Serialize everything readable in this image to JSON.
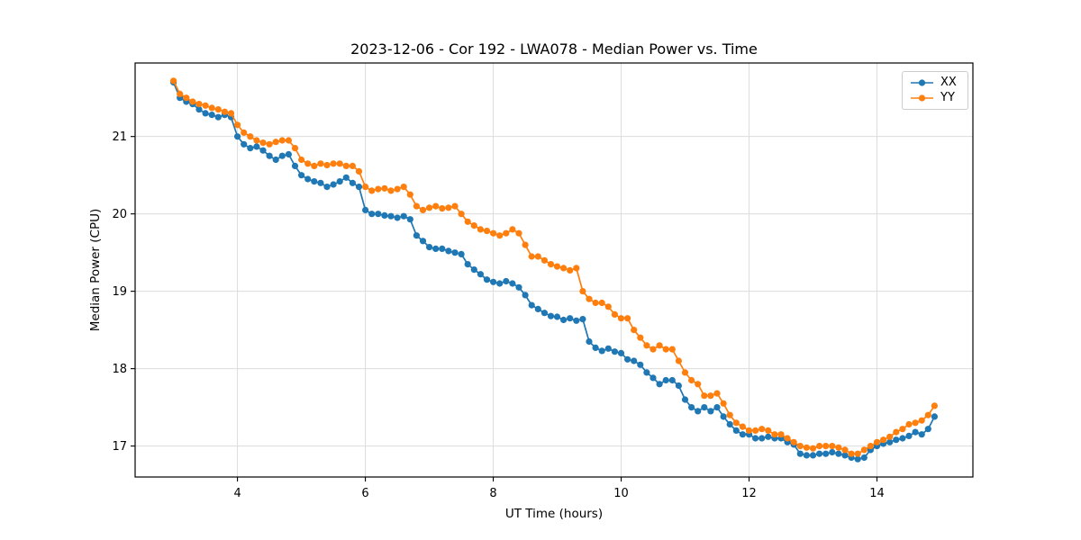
{
  "chart_data": {
    "type": "line",
    "title": "2023-12-06 - Cor 192 - LWA078 - Median Power vs. Time",
    "xlabel": "UT Time (hours)",
    "ylabel": "Median Power (CPU)",
    "xlim": [
      2.4,
      15.5
    ],
    "ylim": [
      16.6,
      21.95
    ],
    "xticks": [
      4,
      6,
      8,
      10,
      12,
      14
    ],
    "yticks": [
      17,
      18,
      19,
      20,
      21
    ],
    "grid": true,
    "legend_position": "upper right",
    "marker": "circle",
    "x": [
      3.0,
      3.1,
      3.2,
      3.3,
      3.4,
      3.5,
      3.6,
      3.7,
      3.8,
      3.9,
      4.0,
      4.1,
      4.2,
      4.3,
      4.4,
      4.5,
      4.6,
      4.7,
      4.8,
      4.9,
      5.0,
      5.1,
      5.2,
      5.3,
      5.4,
      5.5,
      5.6,
      5.7,
      5.8,
      5.9,
      6.0,
      6.1,
      6.2,
      6.3,
      6.4,
      6.5,
      6.6,
      6.7,
      6.8,
      6.9,
      7.0,
      7.1,
      7.2,
      7.3,
      7.4,
      7.5,
      7.6,
      7.7,
      7.8,
      7.9,
      8.0,
      8.1,
      8.2,
      8.3,
      8.4,
      8.5,
      8.6,
      8.7,
      8.8,
      8.9,
      9.0,
      9.1,
      9.2,
      9.3,
      9.4,
      9.5,
      9.6,
      9.7,
      9.8,
      9.9,
      10.0,
      10.1,
      10.2,
      10.3,
      10.4,
      10.5,
      10.6,
      10.7,
      10.8,
      10.9,
      11.0,
      11.1,
      11.2,
      11.3,
      11.4,
      11.5,
      11.6,
      11.7,
      11.8,
      11.9,
      12.0,
      12.1,
      12.2,
      12.3,
      12.4,
      12.5,
      12.6,
      12.7,
      12.8,
      12.9,
      13.0,
      13.1,
      13.2,
      13.3,
      13.4,
      13.5,
      13.6,
      13.7,
      13.8,
      13.9,
      14.0,
      14.1,
      14.2,
      14.3,
      14.4,
      14.5,
      14.6,
      14.7,
      14.8,
      14.9
    ],
    "series": [
      {
        "name": "XX",
        "color": "#1f77b4",
        "values": [
          21.7,
          21.5,
          21.45,
          21.42,
          21.35,
          21.3,
          21.28,
          21.25,
          21.28,
          21.25,
          21.0,
          20.9,
          20.85,
          20.87,
          20.82,
          20.75,
          20.7,
          20.75,
          20.77,
          20.62,
          20.5,
          20.45,
          20.42,
          20.4,
          20.35,
          20.38,
          20.42,
          20.47,
          20.4,
          20.35,
          20.05,
          20.0,
          20.0,
          19.98,
          19.97,
          19.95,
          19.97,
          19.93,
          19.72,
          19.65,
          19.57,
          19.55,
          19.55,
          19.52,
          19.5,
          19.48,
          19.35,
          19.28,
          19.22,
          19.15,
          19.12,
          19.1,
          19.13,
          19.1,
          19.05,
          18.95,
          18.82,
          18.77,
          18.72,
          18.68,
          18.67,
          18.63,
          18.65,
          18.62,
          18.64,
          18.35,
          18.27,
          18.23,
          18.26,
          18.22,
          18.2,
          18.12,
          18.1,
          18.05,
          17.95,
          17.88,
          17.8,
          17.85,
          17.85,
          17.78,
          17.6,
          17.5,
          17.45,
          17.5,
          17.45,
          17.5,
          17.38,
          17.28,
          17.2,
          17.15,
          17.15,
          17.1,
          17.1,
          17.12,
          17.1,
          17.1,
          17.05,
          17.02,
          16.9,
          16.88,
          16.88,
          16.9,
          16.9,
          16.92,
          16.9,
          16.88,
          16.85,
          16.83,
          16.85,
          16.95,
          17.0,
          17.03,
          17.05,
          17.08,
          17.1,
          17.13,
          17.18,
          17.15,
          17.22,
          17.38
        ]
      },
      {
        "name": "YY",
        "color": "#ff7f0e",
        "values": [
          21.72,
          21.55,
          21.5,
          21.45,
          21.42,
          21.4,
          21.37,
          21.35,
          21.32,
          21.3,
          21.15,
          21.05,
          21.0,
          20.95,
          20.92,
          20.9,
          20.93,
          20.95,
          20.95,
          20.85,
          20.7,
          20.65,
          20.62,
          20.65,
          20.63,
          20.65,
          20.65,
          20.62,
          20.62,
          20.55,
          20.35,
          20.3,
          20.32,
          20.33,
          20.3,
          20.32,
          20.35,
          20.25,
          20.1,
          20.05,
          20.08,
          20.1,
          20.07,
          20.08,
          20.1,
          20.0,
          19.9,
          19.85,
          19.8,
          19.78,
          19.75,
          19.72,
          19.75,
          19.8,
          19.75,
          19.6,
          19.45,
          19.45,
          19.4,
          19.35,
          19.32,
          19.3,
          19.27,
          19.3,
          19.0,
          18.9,
          18.85,
          18.85,
          18.8,
          18.7,
          18.65,
          18.65,
          18.5,
          18.4,
          18.3,
          18.25,
          18.3,
          18.25,
          18.25,
          18.1,
          17.95,
          17.85,
          17.8,
          17.65,
          17.65,
          17.68,
          17.55,
          17.4,
          17.3,
          17.25,
          17.2,
          17.2,
          17.22,
          17.2,
          17.15,
          17.15,
          17.1,
          17.05,
          17.0,
          16.98,
          16.97,
          17.0,
          17.0,
          17.0,
          16.98,
          16.95,
          16.9,
          16.9,
          16.95,
          17.0,
          17.05,
          17.08,
          17.12,
          17.18,
          17.22,
          17.28,
          17.3,
          17.33,
          17.4,
          17.52
        ]
      }
    ]
  }
}
